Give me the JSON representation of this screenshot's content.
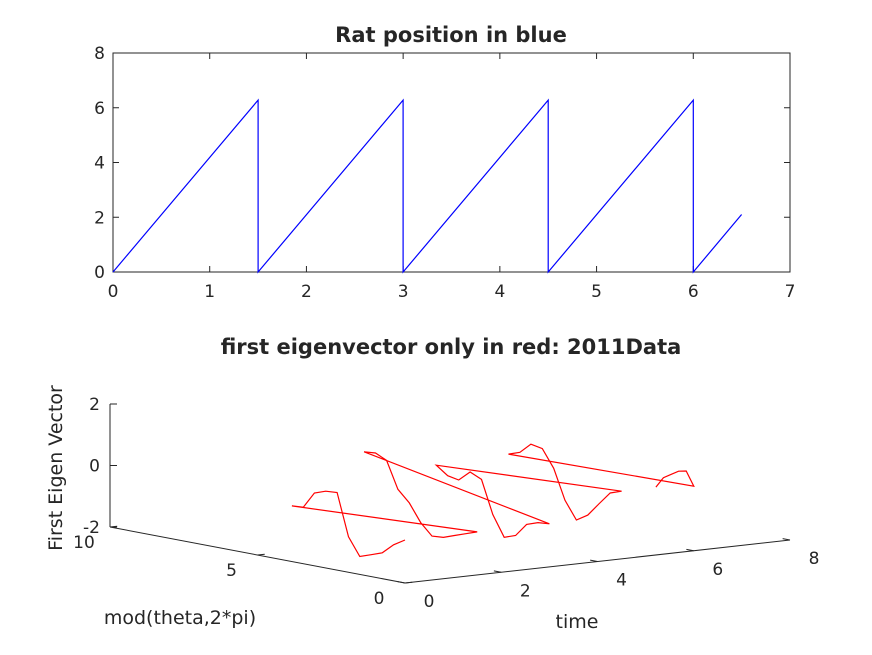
{
  "chart_data": [
    {
      "type": "line",
      "title": "Rat position in blue",
      "xlabel": "",
      "ylabel": "",
      "xlim": [
        0,
        7
      ],
      "ylim": [
        0,
        8
      ],
      "xticks": [
        "0",
        "1",
        "2",
        "3",
        "4",
        "5",
        "6",
        "7"
      ],
      "yticks": [
        "0",
        "2",
        "4",
        "6",
        "8"
      ],
      "grid": false,
      "series": [
        {
          "color": "#0000ff",
          "x": [
            0,
            1.5,
            1.5,
            3.0,
            3.0,
            4.5,
            4.5,
            6.0,
            6.0,
            6.5
          ],
          "y": [
            0,
            6.28,
            0,
            6.28,
            0,
            6.28,
            0,
            6.28,
            0,
            2.1
          ]
        }
      ]
    },
    {
      "type": "line3d",
      "title": "first eigenvector only in  red: 2011Data",
      "xlabel": "time",
      "ylabel": "mod(theta,2*pi)",
      "zlabel": "First Eigen Vector",
      "xlim": [
        0,
        8
      ],
      "ylim": [
        0,
        10
      ],
      "zlim": [
        -2,
        2
      ],
      "xticks": [
        "0",
        "2",
        "4",
        "6",
        "8"
      ],
      "yticks": [
        "0",
        "5",
        "10"
      ],
      "zticks": [
        "-2",
        "0",
        "2"
      ],
      "grid": false,
      "series": [
        {
          "color": "#ff0000",
          "points": [
            [
              0.0,
              0.0,
              -0.6
            ],
            [
              0.15,
              0.63,
              -0.9
            ],
            [
              0.3,
              1.26,
              -1.3
            ],
            [
              0.45,
              1.88,
              -1.5
            ],
            [
              0.6,
              2.51,
              -1.7
            ],
            [
              0.75,
              3.14,
              -1.2
            ],
            [
              0.9,
              3.77,
              0.1
            ],
            [
              1.05,
              4.4,
              0.0
            ],
            [
              1.2,
              5.03,
              -0.2
            ],
            [
              1.35,
              5.65,
              -0.8
            ],
            [
              1.5,
              6.28,
              -0.9
            ],
            [
              1.5,
              0.0,
              -0.6
            ],
            [
              1.65,
              0.63,
              -0.8
            ],
            [
              1.8,
              1.26,
              -1.0
            ],
            [
              1.95,
              1.88,
              -1.2
            ],
            [
              2.1,
              2.51,
              -1.3
            ],
            [
              2.25,
              3.14,
              -1.0
            ],
            [
              2.4,
              3.77,
              -0.5
            ],
            [
              2.55,
              4.4,
              -0.2
            ],
            [
              2.7,
              5.03,
              0.6
            ],
            [
              2.85,
              5.65,
              0.7
            ],
            [
              3.0,
              6.28,
              0.6
            ],
            [
              3.0,
              0.0,
              -0.6
            ],
            [
              3.15,
              0.63,
              -0.7
            ],
            [
              3.3,
              1.26,
              -0.9
            ],
            [
              3.45,
              1.88,
              -1.4
            ],
            [
              3.6,
              2.51,
              -1.6
            ],
            [
              3.75,
              3.14,
              -1.0
            ],
            [
              3.9,
              3.77,
              0.0
            ],
            [
              4.05,
              4.4,
              0.1
            ],
            [
              4.2,
              5.03,
              -0.3
            ],
            [
              4.35,
              5.65,
              -0.3
            ],
            [
              4.5,
              6.28,
              -0.1
            ],
            [
              4.5,
              0.0,
              0.2
            ],
            [
              4.65,
              0.63,
              0.0
            ],
            [
              4.8,
              1.26,
              -0.5
            ],
            [
              4.95,
              1.88,
              -1.0
            ],
            [
              5.1,
              2.51,
              -1.3
            ],
            [
              5.25,
              3.14,
              -0.8
            ],
            [
              5.4,
              3.77,
              0.1
            ],
            [
              5.55,
              4.4,
              0.6
            ],
            [
              5.7,
              5.03,
              0.6
            ],
            [
              5.85,
              5.65,
              0.2
            ],
            [
              6.0,
              6.28,
              0.0
            ],
            [
              6.0,
              0.0,
              0.1
            ],
            [
              6.1,
              0.42,
              0.5
            ],
            [
              6.2,
              0.84,
              0.4
            ],
            [
              6.3,
              1.26,
              0.2
            ],
            [
              6.4,
              1.68,
              0.0
            ],
            [
              6.5,
              2.1,
              -0.4
            ]
          ]
        }
      ]
    }
  ]
}
